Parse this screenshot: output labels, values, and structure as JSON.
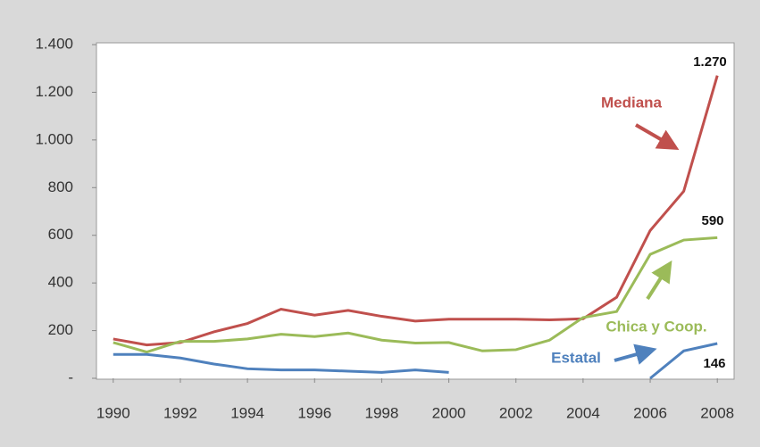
{
  "chart_data": {
    "type": "line",
    "x": [
      1990,
      1991,
      1992,
      1993,
      1994,
      1995,
      1996,
      1997,
      1998,
      1999,
      2000,
      2001,
      2002,
      2003,
      2004,
      2005,
      2006,
      2007,
      2008
    ],
    "xlim": [
      1989.5,
      2008.5
    ],
    "xticks": [
      1990,
      1992,
      1994,
      1996,
      1998,
      2000,
      2002,
      2004,
      2006,
      2008
    ],
    "ylim": [
      0,
      1400
    ],
    "yticks": [
      {
        "value": 0,
        "label": "-"
      },
      200,
      400,
      600,
      800,
      {
        "value": 1000,
        "label": "1.000"
      },
      {
        "value": 1200,
        "label": "1.200"
      },
      {
        "value": 1400,
        "label": "1.400"
      }
    ],
    "series": [
      {
        "name": "Mediana",
        "color": "#c0504d",
        "values": [
          165,
          140,
          150,
          195,
          230,
          290,
          265,
          285,
          260,
          240,
          248,
          248,
          248,
          245,
          250,
          340,
          620,
          785,
          1270
        ],
        "value_labels": [
          null,
          null,
          null,
          null,
          null,
          null,
          null,
          null,
          null,
          null,
          null,
          null,
          null,
          null,
          null,
          null,
          null,
          null,
          "1.270"
        ]
      },
      {
        "name": "Chica y Coop.",
        "color": "#9bbb59",
        "values": [
          150,
          110,
          155,
          155,
          165,
          185,
          175,
          190,
          160,
          148,
          150,
          115,
          120,
          160,
          255,
          280,
          520,
          580,
          590
        ],
        "value_labels": [
          null,
          null,
          null,
          null,
          null,
          null,
          null,
          null,
          null,
          null,
          null,
          null,
          null,
          null,
          null,
          null,
          null,
          null,
          "590"
        ]
      },
      {
        "name": "Estatal",
        "color": "#4f81bd",
        "values": [
          100,
          100,
          85,
          60,
          40,
          35,
          35,
          30,
          25,
          35,
          25,
          null,
          null,
          null,
          null,
          null,
          0,
          115,
          146
        ],
        "value_labels": [
          null,
          null,
          null,
          null,
          null,
          null,
          null,
          null,
          null,
          null,
          null,
          null,
          null,
          null,
          null,
          null,
          null,
          null,
          "146"
        ]
      }
    ]
  }
}
